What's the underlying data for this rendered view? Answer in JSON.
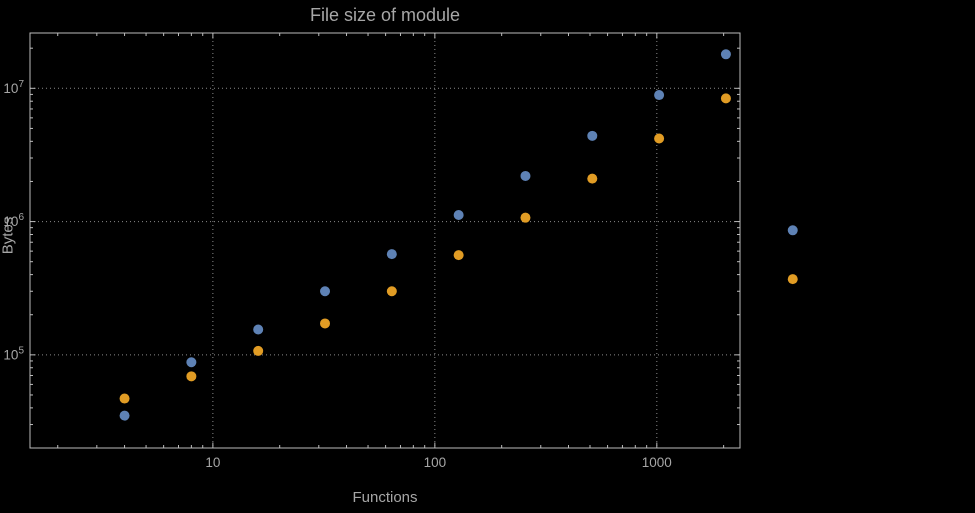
{
  "chart_data": {
    "type": "scatter",
    "title": "File size of module",
    "xlabel": "Functions",
    "ylabel": "Bytes",
    "x_scale": "log",
    "y_scale": "log",
    "grid": "dotted",
    "legend": "none",
    "xlim": [
      1.5,
      2370
    ],
    "ylim": [
      20000,
      26000000
    ],
    "x_ticks": [
      10,
      100,
      1000
    ],
    "x_tick_labels": [
      "10",
      "100",
      "1000"
    ],
    "y_ticks": [
      100000,
      1000000,
      10000000
    ],
    "y_tick_labels": [
      "10^5",
      "10^6",
      "10^7"
    ],
    "x": [
      4,
      8,
      16,
      32,
      64,
      128,
      256,
      512,
      1024,
      2048,
      4096
    ],
    "series": [
      {
        "name": "series-1-blue",
        "color": "#5e82b5",
        "values": [
          35000,
          88000,
          155000,
          300000,
          570000,
          1120000,
          2200000,
          4400000,
          8900000,
          18000000,
          860000
        ]
      },
      {
        "name": "series-2-orange",
        "color": "#e19c24",
        "values": [
          47000,
          69000,
          107000,
          172000,
          300000,
          560000,
          1070000,
          2100000,
          4200000,
          8400000,
          370000
        ]
      }
    ],
    "colors": {
      "background": "#000000",
      "frame": "#bdbdbd",
      "grid": "#8a8a8a",
      "labels": "#a6a6a6"
    },
    "marker_size_px": 10
  }
}
